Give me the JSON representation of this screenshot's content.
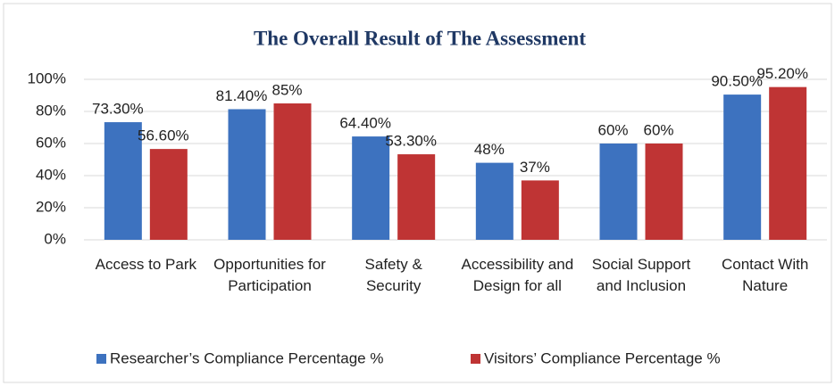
{
  "chart_data": {
    "type": "bar",
    "title": "The Overall Result of The Assessment",
    "categories": [
      "Access to Park",
      "Opportunities for Participation",
      "Safety & Security",
      "Accessibility and Design for all",
      "Social Support and Inclusion",
      "Contact With Nature"
    ],
    "series": [
      {
        "name": "Researcher’s Compliance Percentage %",
        "color": "#3d72bf",
        "values": [
          73.3,
          81.4,
          64.4,
          48,
          60,
          90.5
        ],
        "value_labels": [
          "73.30%",
          "81.40%",
          "64.40%",
          "48%",
          "60%",
          "90.50%"
        ]
      },
      {
        "name": "Visitors’ Compliance Percentage %",
        "color": "#bf3434",
        "values": [
          56.6,
          85,
          53.3,
          37,
          60,
          95.2
        ],
        "value_labels": [
          "56.60%",
          "85%",
          "53.30%",
          "37%",
          "60%",
          "95.20%"
        ]
      }
    ],
    "ylim": [
      0,
      100
    ],
    "yticks": [
      {
        "value": 0,
        "label": "0%"
      },
      {
        "value": 20,
        "label": "20%"
      },
      {
        "value": 40,
        "label": "40%"
      },
      {
        "value": 60,
        "label": "60%"
      },
      {
        "value": 80,
        "label": "80%"
      },
      {
        "value": 100,
        "label": "100%"
      }
    ],
    "grid": true,
    "legend": "bottom"
  }
}
